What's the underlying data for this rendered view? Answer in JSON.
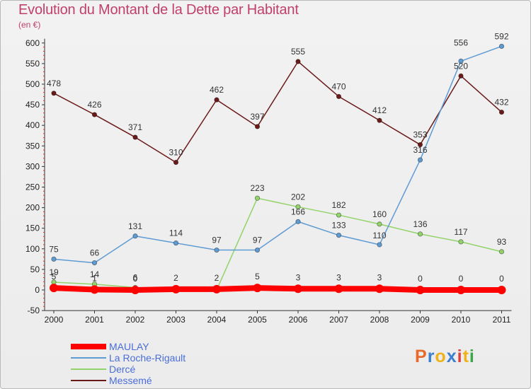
{
  "header": {
    "title": "Evolution du Montant de la Dette par Habitant",
    "unit": "(en €)"
  },
  "logo": {
    "letters": [
      "P",
      "r",
      "o",
      "x",
      "i",
      "t",
      "i"
    ],
    "colors": [
      "#e8692a",
      "#3a7fd0",
      "#f0b21b",
      "#3a7fd0",
      "#e23d3d",
      "#f0b21b",
      "#3aa84a"
    ]
  },
  "chart_data": {
    "type": "line",
    "title": "Evolution du Montant de la Dette par Habitant",
    "ylabel": "(en €)",
    "xlabel": "",
    "x": [
      "2000",
      "2001",
      "2002",
      "2003",
      "2004",
      "2005",
      "2006",
      "2007",
      "2008",
      "2009",
      "2010",
      "2011"
    ],
    "yticks": [
      "-50",
      "0",
      "50",
      "100",
      "150",
      "200",
      "250",
      "300",
      "350",
      "400",
      "450",
      "500",
      "550",
      "600"
    ],
    "ylim": [
      -50,
      600
    ],
    "grid": false,
    "legend_position": "bottom-left",
    "series": [
      {
        "name": "MAULAY",
        "color": "#ff0000",
        "values": [
          5,
          1,
          0,
          2,
          2,
          5,
          3,
          3,
          3,
          0,
          0,
          0
        ],
        "labels": [
          "5",
          "1",
          "0",
          "2",
          "2",
          "5",
          "3",
          "3",
          "3",
          "0",
          "0",
          "0"
        ]
      },
      {
        "name": "La Roche-Rigault",
        "color": "#5f9bd3",
        "values": [
          75,
          66,
          131,
          114,
          97,
          97,
          166,
          133,
          110,
          316,
          556,
          592
        ],
        "labels": [
          "75",
          "66",
          "131",
          "114",
          "97",
          "97",
          "166",
          "133",
          "110",
          "316",
          "556",
          "592"
        ]
      },
      {
        "name": "Dercé",
        "color": "#93d36b",
        "values": [
          19,
          14,
          6,
          0,
          0,
          223,
          202,
          182,
          160,
          136,
          117,
          93
        ],
        "labels": [
          "19",
          "14",
          "6",
          "",
          "",
          "223",
          "202",
          "182",
          "160",
          "136",
          "117",
          "93"
        ]
      },
      {
        "name": "Messemé",
        "color": "#6b1a1a",
        "values": [
          478,
          426,
          371,
          310,
          462,
          397,
          555,
          470,
          412,
          353,
          520,
          432
        ],
        "labels": [
          "478",
          "426",
          "371",
          "310",
          "462",
          "397",
          "555",
          "470",
          "412",
          "353",
          "520",
          "432"
        ]
      }
    ]
  }
}
